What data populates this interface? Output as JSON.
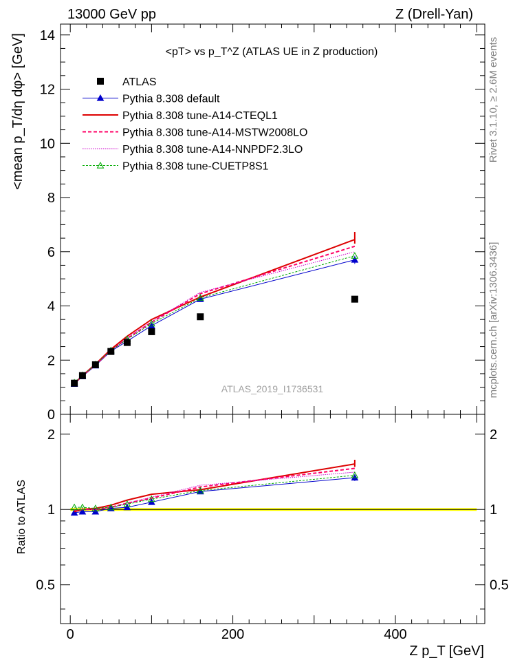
{
  "header": {
    "left": "13000 GeV pp",
    "right": "Z (Drell-Yan)"
  },
  "side_labels": {
    "rivet": "Rivet 3.1.10, ≥ 2.6M events",
    "mcplots": "mcplots.cern.ch [arXiv:1306.3436]"
  },
  "chart_data": {
    "type": "line",
    "title": "<pT> vs p_T^Z (ATLAS UE in Z production)",
    "watermark": "ATLAS_2019_I1736531",
    "xlabel": "Z p_T [GeV]",
    "xlim": [
      -12,
      510
    ],
    "x_ticks": [
      0,
      200,
      400
    ],
    "main": {
      "ylabel": "<mean p_T/dη dφ> [GeV]",
      "ylim": [
        0,
        14.4
      ],
      "y_ticks": [
        0,
        2,
        4,
        6,
        8,
        10,
        12,
        14
      ]
    },
    "ratio": {
      "ylabel": "Ratio to ATLAS",
      "ylim": [
        0.35,
        2.4
      ],
      "y_ticks": [
        0.5,
        1,
        2
      ],
      "reference_line": 1
    },
    "x": [
      5,
      15,
      31,
      50,
      70,
      100,
      160,
      350
    ],
    "data": {
      "name": "ATLAS",
      "values": [
        1.15,
        1.43,
        1.83,
        2.32,
        2.65,
        3.05,
        3.6,
        4.25
      ],
      "color": "#000000"
    },
    "series": [
      {
        "name": "Pythia 8.308 default",
        "color": "#0000cc",
        "dash": "",
        "marker": "triangle-filled",
        "values": [
          1.12,
          1.4,
          1.8,
          2.33,
          2.7,
          3.27,
          4.25,
          5.7
        ],
        "ratio": [
          0.97,
          0.98,
          0.98,
          1.01,
          1.02,
          1.07,
          1.18,
          1.34
        ]
      },
      {
        "name": "Pythia 8.308 tune-A14-CTEQL1",
        "color": "#dd0000",
        "dash": "",
        "marker": "none",
        "values": [
          1.14,
          1.43,
          1.85,
          2.4,
          2.88,
          3.5,
          4.33,
          6.45
        ],
        "ratio": [
          0.98,
          1.0,
          1.01,
          1.04,
          1.09,
          1.15,
          1.2,
          1.52
        ]
      },
      {
        "name": "Pythia 8.308 tune-A14-MSTW2008LO",
        "color": "#ff0066",
        "dash": "5 3",
        "marker": "none",
        "values": [
          1.14,
          1.42,
          1.83,
          2.35,
          2.8,
          3.4,
          4.45,
          6.2
        ],
        "ratio": [
          0.99,
          1.0,
          1.0,
          1.02,
          1.06,
          1.11,
          1.23,
          1.46
        ]
      },
      {
        "name": "Pythia 8.308 tune-A14-NNPDF2.3LO",
        "color": "#cc00cc",
        "dash": "1.5 1.5",
        "marker": "none",
        "values": [
          1.15,
          1.43,
          1.84,
          2.35,
          2.82,
          3.42,
          4.5,
          6.0
        ],
        "ratio": [
          1.0,
          1.0,
          1.0,
          1.02,
          1.06,
          1.12,
          1.25,
          1.41
        ]
      },
      {
        "name": "Pythia 8.308 tune-CUETP8S1",
        "color": "#00aa00",
        "dash": "3 2",
        "marker": "triangle-open",
        "values": [
          1.17,
          1.44,
          1.84,
          2.36,
          2.77,
          3.35,
          4.3,
          5.85
        ],
        "ratio": [
          1.02,
          1.02,
          1.01,
          1.02,
          1.05,
          1.1,
          1.19,
          1.37
        ]
      }
    ]
  }
}
